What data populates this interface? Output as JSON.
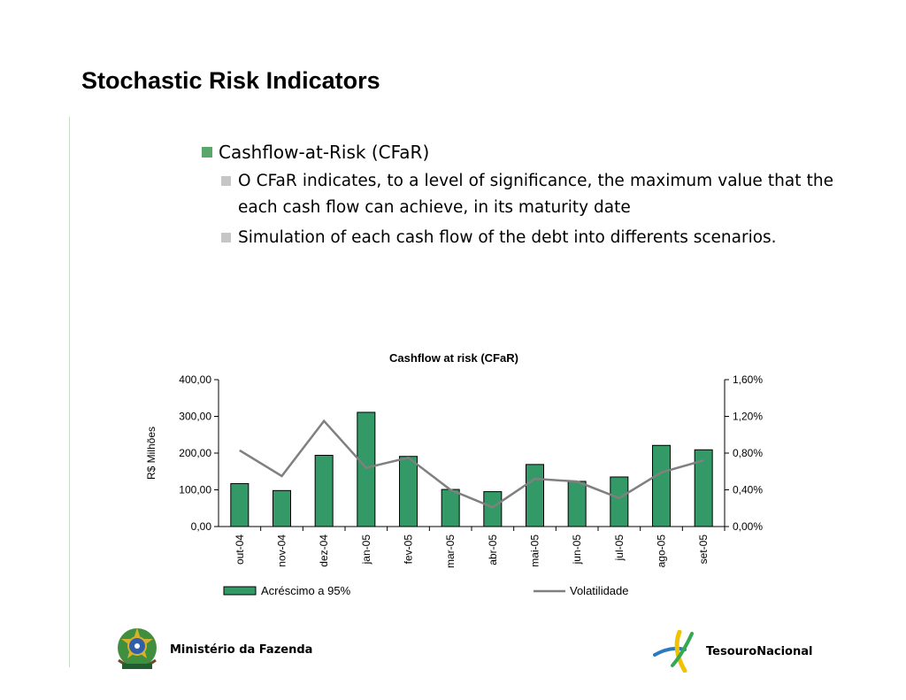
{
  "slide": {
    "title": "Stochastic Risk Indicators",
    "bullet_main": "Cashflow-at-Risk (CFaR)",
    "sub_bullets": [
      "O CFaR indicates, to a level of significance, the maximum value that the each cash flow can achieve, in its maturity date",
      "Simulation of each cash flow of the debt into differents scenarios."
    ]
  },
  "footer": {
    "left_label": "Ministério da Fazenda",
    "right_label": "TesouroNacional"
  },
  "colors": {
    "bar_fill": "#339966",
    "line": "#808080",
    "bullet_green": "#5aa66b",
    "bullet_gray": "#c6c6c6"
  },
  "chart_data": {
    "type": "bar",
    "title": "Cashflow at risk (CFaR)",
    "ylabel": "R$ Milhões",
    "y2label": "",
    "categories": [
      "out-04",
      "nov-04",
      "dez-04",
      "jan-05",
      "fev-05",
      "mar-05",
      "abr-05",
      "mai-05",
      "jun-05",
      "jul-05",
      "ago-05",
      "set-05"
    ],
    "series": [
      {
        "name": "Acréscimo a 95%",
        "type": "bar",
        "axis": "left",
        "values": [
          117,
          98,
          194,
          311,
          191,
          101,
          95,
          169,
          123,
          135,
          221,
          209
        ]
      },
      {
        "name": "Volatilidade",
        "type": "line",
        "axis": "right",
        "values": [
          0.83,
          0.55,
          1.15,
          0.64,
          0.75,
          0.4,
          0.21,
          0.52,
          0.49,
          0.31,
          0.59,
          0.72
        ]
      }
    ],
    "ylim": [
      0,
      400
    ],
    "yticks": [
      "0,00",
      "100,00",
      "200,00",
      "300,00",
      "400,00"
    ],
    "y2lim": [
      0,
      1.6
    ],
    "y2ticks": [
      "0,00%",
      "0,40%",
      "0,80%",
      "1,20%",
      "1,60%"
    ],
    "legend_position": "bottom",
    "grid": false
  }
}
